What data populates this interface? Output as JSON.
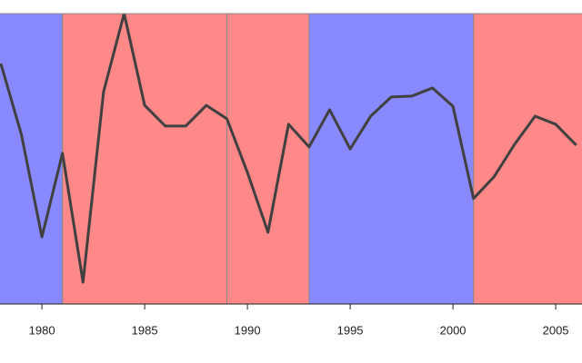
{
  "chart_data": {
    "type": "line",
    "x": [
      1978,
      1979,
      1980,
      1981,
      1982,
      1983,
      1984,
      1985,
      1986,
      1987,
      1988,
      1989,
      1990,
      1991,
      1992,
      1993,
      1994,
      1995,
      1996,
      1997,
      1998,
      1999,
      2000,
      2001,
      2002,
      2003,
      2004,
      2005,
      2006
    ],
    "series": [
      {
        "color": "#404040",
        "values": [
          82.8,
          58.4,
          23.1,
          51.9,
          7.5,
          73.1,
          100,
          68.4,
          61.3,
          61.3,
          68.4,
          63.8,
          45.3,
          24.7,
          61.9,
          54.1,
          66.9,
          53.4,
          64.7,
          71.3,
          71.6,
          74.4,
          68.1,
          36.3,
          43.8,
          55,
          64.7,
          61.9,
          54.7
        ]
      }
    ],
    "bands": [
      {
        "start": 1977,
        "end": 1981,
        "color": "#8888ff"
      },
      {
        "start": 1981,
        "end": 1989,
        "color": "#ff8888"
      },
      {
        "start": 1989,
        "end": 1993,
        "color": "#ff8888"
      },
      {
        "start": 1993,
        "end": 2001,
        "color": "#8888ff"
      },
      {
        "start": 2001,
        "end": 2009,
        "color": "#ff8888"
      }
    ],
    "xlim": [
      1977.96,
      2006.28
    ],
    "ylim": [
      0,
      100
    ],
    "xticks": [
      1980,
      1985,
      1990,
      1995,
      2000,
      2005
    ]
  }
}
